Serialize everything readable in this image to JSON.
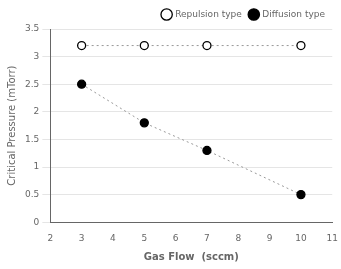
{
  "chart_data": {
    "type": "line",
    "xlabel": "Gas Flow  (sccm)",
    "ylabel": "Critical Pressure (mTorr)",
    "color": "#999999",
    "line_style": "dotted",
    "series": [
      {
        "name": "Repulsion type",
        "x": [
          3,
          5,
          7,
          10
        ],
        "values": [
          3.2,
          3.2,
          3.2,
          3.2
        ],
        "color": "#ffffff",
        "marker": "circle"
      },
      {
        "name": "Diffusion type",
        "x": [
          3,
          5,
          7,
          10
        ],
        "values": [
          2.5,
          1.8,
          1.3,
          0.5
        ],
        "color": "#000000",
        "marker": "circle"
      }
    ],
    "xlim": [
      2,
      11
    ],
    "ylim": [
      0,
      3.5
    ],
    "xticks": [
      2,
      3,
      4,
      5,
      6,
      7,
      8,
      9,
      10,
      11
    ],
    "yticks": [
      0,
      0.5,
      1,
      1.5,
      2,
      2.5,
      3,
      3.5
    ],
    "grid": "y",
    "legend": "upper right"
  }
}
